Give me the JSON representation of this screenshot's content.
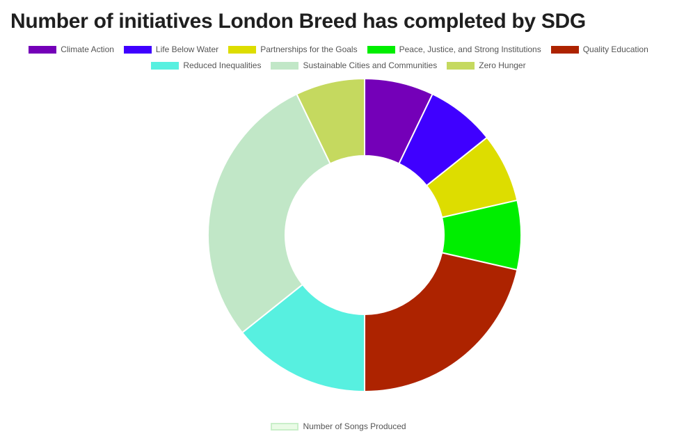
{
  "chart_data": {
    "type": "doughnut",
    "title": "Number of initiatives London Breed has completed by SDG",
    "categories": [
      "Climate Action",
      "Life Below Water",
      "Partnerships for the Goals",
      "Peace, Justice, and Strong Institutions",
      "Quality Education",
      "Reduced Inequalities",
      "Sustainable Cities and Communities",
      "Zero Hunger"
    ],
    "series": [
      {
        "name": "Number of Songs Produced",
        "values": [
          1,
          1,
          1,
          1,
          3,
          2,
          4,
          1
        ]
      }
    ],
    "colors": [
      "#7400b8",
      "#3f00ff",
      "#dddd00",
      "#00ee00",
      "#ad2300",
      "#57f0e0",
      "#c1e7c7",
      "#c5d95f"
    ],
    "series_legend_color": "#eafbe6",
    "legend_position": "top",
    "grid": false
  }
}
